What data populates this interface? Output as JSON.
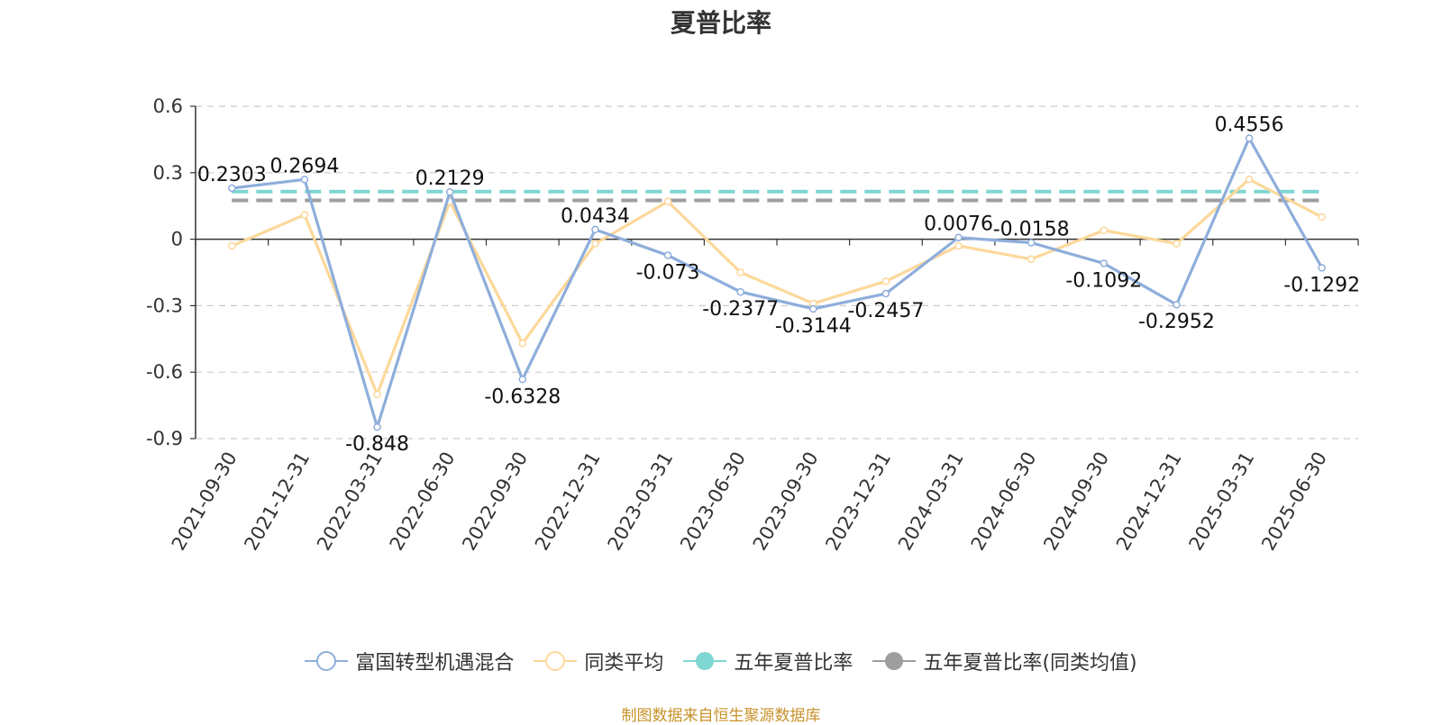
{
  "chart_data": {
    "type": "line",
    "title": "夏普比率",
    "categories": [
      "2021-09-30",
      "2021-12-31",
      "2022-03-31",
      "2022-06-30",
      "2022-09-30",
      "2022-12-31",
      "2023-03-31",
      "2023-06-30",
      "2023-09-30",
      "2023-12-31",
      "2024-03-31",
      "2024-06-30",
      "2024-09-30",
      "2024-12-31",
      "2025-03-31",
      "2025-06-30"
    ],
    "ylim": [
      -0.9,
      0.6
    ],
    "yticks": [
      0.6,
      0.3,
      0,
      -0.3,
      -0.6,
      -0.9
    ],
    "ytick_labels": [
      "0.6",
      "0.3",
      "0",
      "-0.3",
      "-0.6",
      "-0.9"
    ],
    "series": [
      {
        "name": "富国转型机遇混合",
        "color": "#8eaedb",
        "values": [
          0.2303,
          0.2694,
          -0.848,
          0.2129,
          -0.6328,
          0.0434,
          -0.073,
          -0.2377,
          -0.3144,
          -0.2457,
          0.0076,
          -0.0158,
          -0.1092,
          -0.2952,
          0.4556,
          -0.1292
        ],
        "labels": [
          "0.2303",
          "0.2694",
          "-0.848",
          "0.2129",
          "-0.6328",
          "0.0434",
          "-0.073",
          "-0.2377",
          "-0.3144",
          "-0.2457",
          "0.0076",
          "-0.0158",
          "-0.1092",
          "-0.2952",
          "0.4556",
          "-0.1292"
        ]
      },
      {
        "name": "同类平均",
        "color": "#fcd89a",
        "values": [
          -0.03,
          0.11,
          -0.7,
          0.17,
          -0.47,
          -0.02,
          0.17,
          -0.15,
          -0.29,
          -0.19,
          -0.03,
          -0.09,
          0.04,
          -0.02,
          0.27,
          0.1
        ]
      },
      {
        "name": "五年夏普比率",
        "color": "#7fd6d2",
        "type": "constant",
        "value": 0.215
      },
      {
        "name": "五年夏普比率(同类均值)",
        "color": "#9e9e9e",
        "type": "constant",
        "value": 0.175
      }
    ],
    "grid": true,
    "legend_position": "bottom"
  },
  "source_text": "制图数据来自恒生聚源数据库"
}
